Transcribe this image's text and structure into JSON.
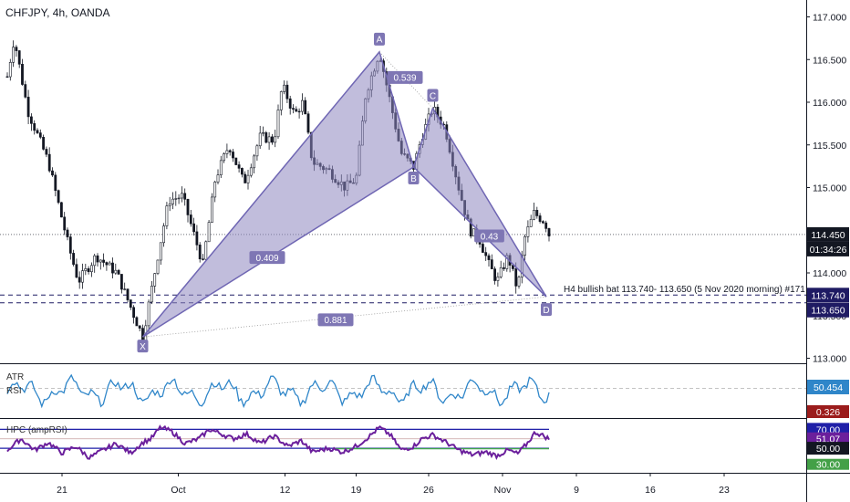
{
  "header": {
    "symbol": "CHFJPY",
    "interval": "4h",
    "broker": "OANDA"
  },
  "colors": {
    "pattern_fill": "#8e86bf",
    "pattern_stroke": "#6f66b3",
    "label_bg": "#7e76b4",
    "candle": "#131722",
    "atr_line": "#2f86c9",
    "rsi_line": "#6b1f9c",
    "band_line": "#1f1fa8",
    "mid_line": "#7f1d1d",
    "low_line": "#3fa34d",
    "badge_dark": "#131722",
    "badge_navy": "#1f1b63",
    "badge_blue": "#2f86c9",
    "badge_red": "#9b1c1c",
    "badge_purple": "#6b1f9c",
    "badge_green": "#43a047"
  },
  "main_panel": {
    "ylim": [
      113.0,
      117.0
    ],
    "y_ticks": [
      "117.000",
      "116.500",
      "116.000",
      "115.500",
      "115.000",
      "114.500",
      "114.000",
      "113.500",
      "113.000"
    ]
  },
  "x_axis": {
    "range": [
      0,
      58
    ],
    "ticks": [
      {
        "x": 4,
        "label": "21"
      },
      {
        "x": 12.5,
        "label": "Oct"
      },
      {
        "x": 20.3,
        "label": "12"
      },
      {
        "x": 25.5,
        "label": "19"
      },
      {
        "x": 30.8,
        "label": "26"
      },
      {
        "x": 36.2,
        "label": "Nov"
      },
      {
        "x": 41.6,
        "label": "9"
      },
      {
        "x": 47,
        "label": "16"
      },
      {
        "x": 52.4,
        "label": "23"
      }
    ]
  },
  "price_badges": {
    "last": "114.450",
    "countdown": "01:34:26",
    "level1": "113.740",
    "level2": "113.650"
  },
  "levels": {
    "current": 114.45,
    "zone_top": 113.74,
    "zone_bottom": 113.65
  },
  "annotation": "H4 bullish bat 113.740- 113.650 (5 Nov 2020 morning) #171",
  "ratios": {
    "ab": "0.539",
    "bc": "0.43",
    "xb": "0.409",
    "xd": "0.881"
  },
  "chart_data": [
    {
      "type": "candlestick",
      "title": "CHFJPY, 4h, OANDA",
      "ylim": [
        113.0,
        117.0
      ],
      "harmonic_pattern": {
        "name": "bullish bat",
        "points": [
          {
            "label": "X",
            "x": 9.9,
            "y": 113.25
          },
          {
            "label": "A",
            "x": 27.2,
            "y": 116.59
          },
          {
            "label": "B",
            "x": 29.7,
            "y": 115.24
          },
          {
            "label": "C",
            "x": 31.1,
            "y": 115.93
          },
          {
            "label": "D",
            "x": 39.4,
            "y": 113.72
          }
        ]
      },
      "waypoints": [
        [
          0,
          116.3
        ],
        [
          0.5,
          116.75
        ],
        [
          1.5,
          115.9
        ],
        [
          3,
          115.3
        ],
        [
          4.5,
          114.3
        ],
        [
          5.2,
          113.9
        ],
        [
          6.5,
          114.2
        ],
        [
          8,
          114.0
        ],
        [
          9.9,
          113.25
        ],
        [
          11,
          114.2
        ],
        [
          11.8,
          114.85
        ],
        [
          12.8,
          114.9
        ],
        [
          14.3,
          114.1
        ],
        [
          15.2,
          115.1
        ],
        [
          16.2,
          115.5
        ],
        [
          17.3,
          115.05
        ],
        [
          18.5,
          115.6
        ],
        [
          19.5,
          115.55
        ],
        [
          20.1,
          116.2
        ],
        [
          21.0,
          115.85
        ],
        [
          21.6,
          116.0
        ],
        [
          22.3,
          115.3
        ],
        [
          23.5,
          115.2
        ],
        [
          24.7,
          115.0
        ],
        [
          25.5,
          115.1
        ],
        [
          26.2,
          116.1
        ],
        [
          27.2,
          116.59
        ],
        [
          28.0,
          116.0
        ],
        [
          28.8,
          115.4
        ],
        [
          29.7,
          115.24
        ],
        [
          30.3,
          115.6
        ],
        [
          31.1,
          115.93
        ],
        [
          32.0,
          115.7
        ],
        [
          33.0,
          115.0
        ],
        [
          33.8,
          114.5
        ],
        [
          34.5,
          114.4
        ],
        [
          35.2,
          114.1
        ],
        [
          35.8,
          113.9
        ],
        [
          36.6,
          114.2
        ],
        [
          37.3,
          113.8
        ],
        [
          37.8,
          114.4
        ],
        [
          38.5,
          114.7
        ],
        [
          39.3,
          114.6
        ],
        [
          39.6,
          114.45
        ]
      ]
    },
    {
      "type": "line",
      "title": "ATR",
      "series": [
        {
          "name": "ATR",
          "last": "50.454"
        },
        {
          "name": "RSI",
          "last": "0.326"
        }
      ],
      "ylim": [
        20,
        80
      ]
    },
    {
      "type": "line",
      "title": "HPC (ampRSI)",
      "ylim": [
        25,
        80
      ],
      "levels": [
        {
          "value": 70,
          "label": "70.00"
        },
        {
          "value": 50,
          "label": "50.00"
        },
        {
          "value": 30,
          "label": "30.00"
        }
      ],
      "series": [
        {
          "name": "ampRSI",
          "last": "51.07"
        }
      ],
      "waypoints": [
        [
          0,
          48
        ],
        [
          1,
          60
        ],
        [
          2,
          48
        ],
        [
          3,
          56
        ],
        [
          4,
          45
        ],
        [
          5,
          52
        ],
        [
          6,
          40
        ],
        [
          7,
          48
        ],
        [
          8,
          55
        ],
        [
          9,
          45
        ],
        [
          9.9,
          56
        ],
        [
          10.5,
          60
        ],
        [
          11.2,
          72
        ],
        [
          12,
          68
        ],
        [
          13,
          55
        ],
        [
          14,
          60
        ],
        [
          14.8,
          70
        ],
        [
          15.5,
          66
        ],
        [
          16.5,
          60
        ],
        [
          17.5,
          65
        ],
        [
          18.5,
          55
        ],
        [
          19.5,
          63
        ],
        [
          20.5,
          52
        ],
        [
          21.5,
          58
        ],
        [
          22.3,
          46
        ],
        [
          23.5,
          50
        ],
        [
          24.5,
          46
        ],
        [
          25.5,
          52
        ],
        [
          26.5,
          63
        ],
        [
          27.2,
          72
        ],
        [
          28.0,
          64
        ],
        [
          28.8,
          48
        ],
        [
          29.7,
          52
        ],
        [
          30.3,
          60
        ],
        [
          31.1,
          64
        ],
        [
          32.0,
          57
        ],
        [
          33.0,
          48
        ],
        [
          34.0,
          43
        ],
        [
          35.0,
          46
        ],
        [
          35.8,
          42
        ],
        [
          36.6,
          48
        ],
        [
          37.3,
          44
        ],
        [
          38.0,
          55
        ],
        [
          38.6,
          67
        ],
        [
          39.2,
          63
        ],
        [
          39.6,
          60
        ]
      ]
    }
  ]
}
